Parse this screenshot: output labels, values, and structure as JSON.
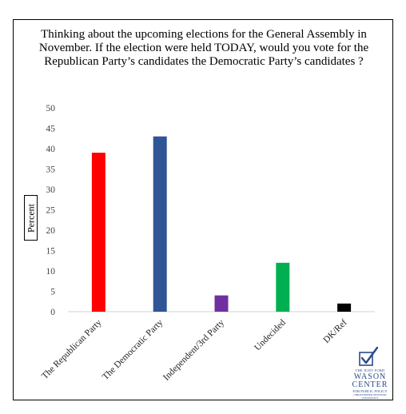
{
  "chart_data": {
    "type": "bar",
    "title": "Thinking about the upcoming elections for the General Assembly in November.  If the election were held TODAY, would you vote for the Republican Party’s candidates the Democratic Party’s candidates ?",
    "ylabel": "Percent",
    "xlabel": "",
    "categories": [
      "The Republican Party",
      "The Democratic Party",
      "Independent/3rd Party",
      "Undecided",
      "DK/Ref"
    ],
    "values": [
      39,
      43,
      4,
      12,
      2
    ],
    "colors": [
      "#ff0000",
      "#2f5597",
      "#7030a0",
      "#00b050",
      "#000000"
    ],
    "ylim": [
      0,
      50
    ],
    "yticks": [
      0,
      5,
      10,
      15,
      20,
      25,
      30,
      35,
      40,
      45,
      50
    ],
    "grid": false,
    "legend": "none"
  },
  "logo": {
    "line1": "THE JUDY FORD",
    "line2": "WASON",
    "line3": "CENTER",
    "line4": "FOR PUBLIC POLICY",
    "line5": "CHRISTOPHER NEWPORT UNIVERSITY",
    "icon": "checkbox-check-icon"
  }
}
